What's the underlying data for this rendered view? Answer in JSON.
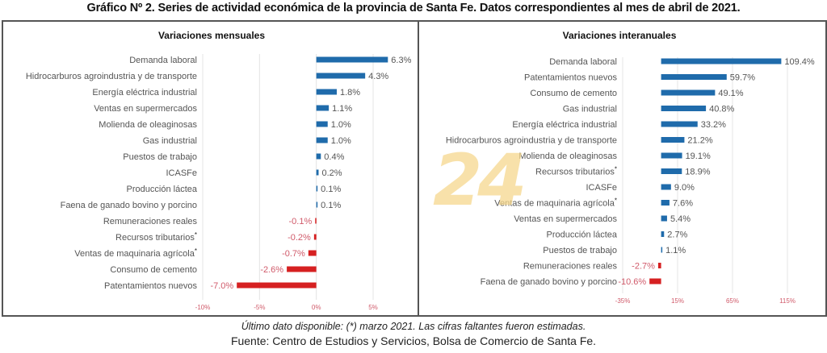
{
  "title": "Gráfico Nº 2. Series de actividad económica de la provincia de Santa Fe. Datos correspondientes al mes de abril de 2021.",
  "watermark": "24",
  "footnote": "Último dato disponible: (*) marzo 2021. Las cifras faltantes fueron estimadas.",
  "source": "Fuente: Centro de Estudios y Servicios, Bolsa de Comercio de Santa Fe.",
  "colors": {
    "positive": "#1f6bab",
    "negative": "#d62021",
    "positive_label": "#555555",
    "negative_label": "#d05a6a"
  },
  "chart_data": [
    {
      "type": "bar",
      "orientation": "horizontal",
      "title": "Variaciones mensuales",
      "xlabel": "",
      "ylabel": "",
      "unit": "%",
      "xlim": [
        -10,
        5
      ],
      "xticks": [
        -10,
        -5,
        0,
        5
      ],
      "xtick_labels": [
        "-10%",
        "-5%",
        "0%",
        "5%"
      ],
      "grid": true,
      "categories": [
        "Demanda laboral",
        "Hidrocarburos agroindustria y de transporte",
        "Energía eléctrica industrial",
        "Ventas en supermercados",
        "Molienda de oleaginosas",
        "Gas industrial",
        "Puestos de trabajo",
        "ICASFe",
        "Producción láctea",
        "Faena de ganado bovino y porcino",
        "Remuneraciones reales",
        "Recursos tributarios*",
        "Ventas de maquinaria agrícola*",
        "Consumo de cemento",
        "Patentamientos nuevos"
      ],
      "values": [
        6.3,
        4.3,
        1.8,
        1.1,
        1.0,
        1.0,
        0.4,
        0.2,
        0.1,
        0.1,
        -0.1,
        -0.2,
        -0.7,
        -2.6,
        -7.0
      ],
      "data_labels": [
        "6.3%",
        "4.3%",
        "1.8%",
        "1.1%",
        "1.0%",
        "1.0%",
        "0.4%",
        "0.2%",
        "0.1%",
        "0.1%",
        "-0.1%",
        "-0.2%",
        "-0.7%",
        "-2.6%",
        "-7.0%"
      ]
    },
    {
      "type": "bar",
      "orientation": "horizontal",
      "title": "Variaciones interanuales",
      "xlabel": "",
      "ylabel": "",
      "unit": "%",
      "xlim": [
        -35,
        115
      ],
      "xticks": [
        -35,
        15,
        65,
        115
      ],
      "xtick_labels": [
        "-35%",
        "15%",
        "65%",
        "115%"
      ],
      "grid": true,
      "categories": [
        "Demanda laboral",
        "Patentamientos nuevos",
        "Consumo de cemento",
        "Gas industrial",
        "Energía eléctrica industrial",
        "Hidrocarburos agroindustria y de transporte",
        "Molienda de oleaginosas",
        "Recursos tributarios*",
        "ICASFe",
        "Ventas de maquinaria agrícola*",
        "Ventas en supermercados",
        "Producción láctea",
        "Puestos de trabajo",
        "Remuneraciones reales",
        "Faena de ganado bovino y porcino"
      ],
      "values": [
        109.4,
        59.7,
        49.1,
        40.8,
        33.2,
        21.2,
        19.1,
        18.9,
        9.0,
        7.6,
        5.4,
        2.7,
        1.1,
        -2.7,
        -10.6
      ],
      "data_labels": [
        "109.4%",
        "59.7%",
        "49.1%",
        "40.8%",
        "33.2%",
        "21.2%",
        "19.1%",
        "18.9%",
        "9.0%",
        "7.6%",
        "5.4%",
        "2.7%",
        "1.1%",
        "-2.7%",
        "-10.6%"
      ]
    }
  ]
}
